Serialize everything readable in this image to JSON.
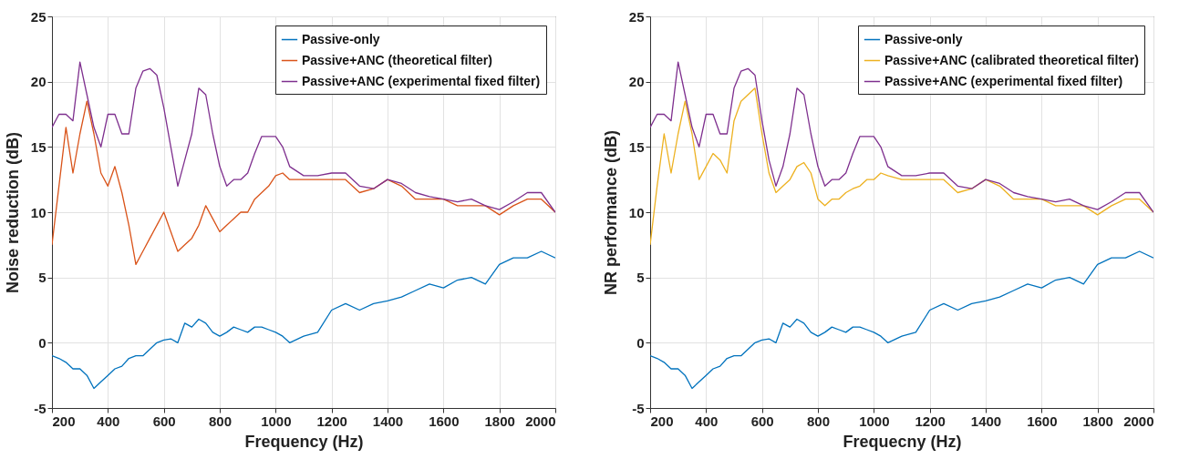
{
  "chart_data": [
    {
      "type": "line",
      "xlabel": "Frequency (Hz)",
      "ylabel": "Noise reduction (dB)",
      "x": [
        200,
        225,
        250,
        275,
        300,
        325,
        350,
        375,
        400,
        425,
        450,
        475,
        500,
        525,
        550,
        575,
        600,
        625,
        650,
        675,
        700,
        725,
        750,
        775,
        800,
        825,
        850,
        875,
        900,
        925,
        950,
        975,
        1000,
        1025,
        1050,
        1100,
        1150,
        1200,
        1250,
        1300,
        1350,
        1400,
        1450,
        1500,
        1550,
        1600,
        1650,
        1700,
        1750,
        1800,
        1850,
        1900,
        1950,
        2000
      ],
      "xlim": [
        200,
        2000
      ],
      "xticks": [
        200,
        400,
        600,
        800,
        1000,
        1200,
        1400,
        1600,
        1800,
        2000
      ],
      "ylim": [
        -5,
        25
      ],
      "yticks": [
        -5,
        0,
        5,
        10,
        15,
        20,
        25
      ],
      "grid": true,
      "legend": "top right",
      "series": [
        {
          "name": "Passive-only",
          "color": "#0072bd",
          "values": [
            -1,
            -1.2,
            -1.5,
            -2,
            -2,
            -2.5,
            -3.5,
            -3,
            -2.5,
            -2,
            -1.8,
            -1.2,
            -1,
            -1,
            -0.5,
            0,
            0.2,
            0.3,
            0,
            1.5,
            1.2,
            1.8,
            1.5,
            0.8,
            0.5,
            0.8,
            1.2,
            1,
            0.8,
            1.2,
            1.2,
            1,
            0.8,
            0.5,
            0,
            0.5,
            0.8,
            2.5,
            3,
            2.5,
            3,
            3.2,
            3.5,
            4,
            4.5,
            4.2,
            4.8,
            5,
            4.5,
            6,
            6.5,
            6.5,
            7,
            6.5
          ]
        },
        {
          "name": "Passive+ANC (theoretical filter)",
          "color": "#d95319",
          "values": [
            7.5,
            12,
            16.5,
            13,
            16,
            18.5,
            16,
            13,
            12,
            13.5,
            11.5,
            9,
            6,
            7,
            8,
            9,
            10,
            8.5,
            7,
            7.5,
            8,
            9,
            10.5,
            9.5,
            8.5,
            9,
            9.5,
            10,
            10,
            11,
            11.5,
            12,
            12.8,
            13,
            12.5,
            12.5,
            12.5,
            12.5,
            12.5,
            11.5,
            11.8,
            12.5,
            12,
            11,
            11,
            11,
            10.5,
            10.5,
            10.5,
            9.8,
            10.5,
            11,
            11,
            10
          ]
        },
        {
          "name": "Passive+ANC (experimental fixed filter)",
          "color": "#7e2f8e",
          "values": [
            16.5,
            17.5,
            17.5,
            17,
            21.5,
            19,
            16.5,
            15,
            17.5,
            17.5,
            16,
            16,
            19.5,
            20.8,
            21,
            20.5,
            18,
            15,
            12,
            14,
            16,
            19.5,
            19,
            16,
            13.5,
            12,
            12.5,
            12.5,
            13,
            14.5,
            15.8,
            15.8,
            15.8,
            15,
            13.5,
            12.8,
            12.8,
            13,
            13,
            12,
            11.8,
            12.5,
            12.2,
            11.5,
            11.2,
            11,
            10.8,
            11,
            10.5,
            10.2,
            10.8,
            11.5,
            11.5,
            10
          ]
        }
      ]
    },
    {
      "type": "line",
      "xlabel": "Frequecny (Hz)",
      "ylabel": "NR performance (dB)",
      "x": [
        200,
        225,
        250,
        275,
        300,
        325,
        350,
        375,
        400,
        425,
        450,
        475,
        500,
        525,
        550,
        575,
        600,
        625,
        650,
        675,
        700,
        725,
        750,
        775,
        800,
        825,
        850,
        875,
        900,
        925,
        950,
        975,
        1000,
        1025,
        1050,
        1100,
        1150,
        1200,
        1250,
        1300,
        1350,
        1400,
        1450,
        1500,
        1550,
        1600,
        1650,
        1700,
        1750,
        1800,
        1850,
        1900,
        1950,
        2000
      ],
      "xlim": [
        200,
        2000
      ],
      "xticks": [
        200,
        400,
        600,
        800,
        1000,
        1200,
        1400,
        1600,
        1800,
        2000
      ],
      "ylim": [
        -5,
        25
      ],
      "yticks": [
        -5,
        0,
        5,
        10,
        15,
        20,
        25
      ],
      "grid": true,
      "legend": "top right",
      "series": [
        {
          "name": "Passive-only",
          "color": "#0072bd",
          "values": [
            -1,
            -1.2,
            -1.5,
            -2,
            -2,
            -2.5,
            -3.5,
            -3,
            -2.5,
            -2,
            -1.8,
            -1.2,
            -1,
            -1,
            -0.5,
            0,
            0.2,
            0.3,
            0,
            1.5,
            1.2,
            1.8,
            1.5,
            0.8,
            0.5,
            0.8,
            1.2,
            1,
            0.8,
            1.2,
            1.2,
            1,
            0.8,
            0.5,
            0,
            0.5,
            0.8,
            2.5,
            3,
            2.5,
            3,
            3.2,
            3.5,
            4,
            4.5,
            4.2,
            4.8,
            5,
            4.5,
            6,
            6.5,
            6.5,
            7,
            6.5
          ]
        },
        {
          "name": "Passive+ANC (calibrated theoretical filter)",
          "color": "#edb120",
          "values": [
            7.5,
            12,
            16,
            13,
            16,
            18.5,
            16,
            12.5,
            13.5,
            14.5,
            14,
            13,
            17,
            18.5,
            19,
            19.5,
            16,
            13,
            11.5,
            12,
            12.5,
            13.5,
            13.8,
            13,
            11,
            10.5,
            11,
            11,
            11.5,
            11.8,
            12,
            12.5,
            12.5,
            13,
            12.8,
            12.5,
            12.5,
            12.5,
            12.5,
            11.5,
            11.8,
            12.5,
            12,
            11,
            11,
            11,
            10.5,
            10.5,
            10.5,
            9.8,
            10.5,
            11,
            11,
            10
          ]
        },
        {
          "name": "Passive+ANC (experimental fixed filter)",
          "color": "#7e2f8e",
          "values": [
            16.5,
            17.5,
            17.5,
            17,
            21.5,
            19,
            16.5,
            15,
            17.5,
            17.5,
            16,
            16,
            19.5,
            20.8,
            21,
            20.5,
            17,
            14,
            12,
            13.5,
            16,
            19.5,
            19,
            16,
            13.5,
            12,
            12.5,
            12.5,
            13,
            14.5,
            15.8,
            15.8,
            15.8,
            15,
            13.5,
            12.8,
            12.8,
            13,
            13,
            12,
            11.8,
            12.5,
            12.2,
            11.5,
            11.2,
            11,
            10.8,
            11,
            10.5,
            10.2,
            10.8,
            11.5,
            11.5,
            10
          ]
        }
      ]
    }
  ]
}
